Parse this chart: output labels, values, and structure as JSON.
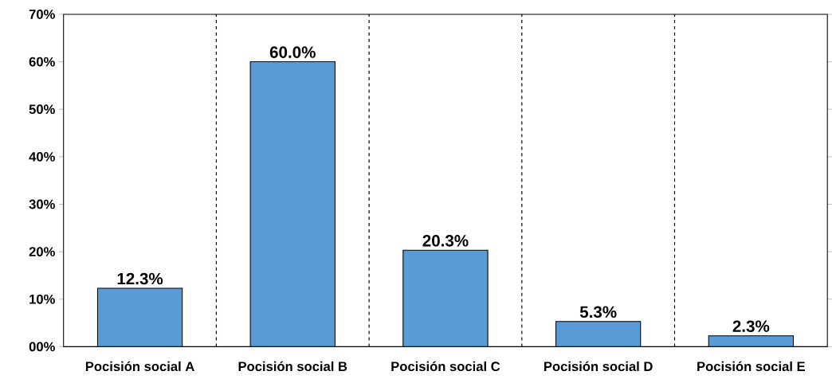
{
  "chart_data": {
    "type": "bar",
    "categories": [
      "Pocisión social A",
      "Pocisión social B",
      "Pocisión social C",
      "Pocisión social D",
      "Pocisión social E"
    ],
    "values": [
      12.3,
      60.0,
      20.3,
      5.3,
      2.3
    ],
    "value_labels": [
      "12.3%",
      "60.0%",
      "20.3%",
      "5.3%",
      "2.3%"
    ],
    "color": "#5b9bd5",
    "ylim": [
      0,
      70
    ],
    "yticks": [
      {
        "value": 0,
        "label": "00%"
      },
      {
        "value": 10,
        "label": "10%"
      },
      {
        "value": 20,
        "label": "20%"
      },
      {
        "value": 30,
        "label": "30%"
      },
      {
        "value": 40,
        "label": "40%"
      },
      {
        "value": 50,
        "label": "50%"
      },
      {
        "value": 60,
        "label": "60%"
      },
      {
        "value": 70,
        "label": "70%"
      }
    ],
    "grid": "x"
  }
}
